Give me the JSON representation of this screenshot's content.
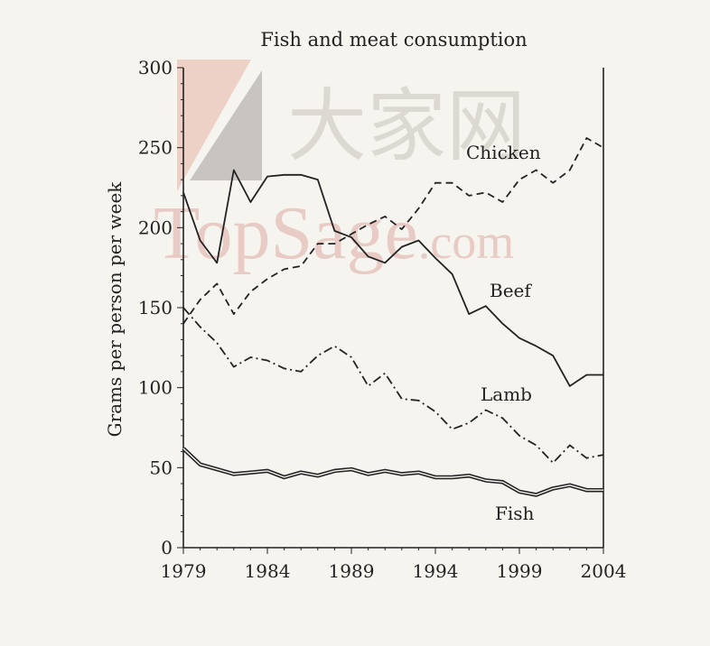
{
  "chart_data": {
    "type": "line",
    "title": "Fish and meat consumption",
    "xlabel": "",
    "ylabel": "Grams per person per week",
    "xlim": [
      1979,
      2004
    ],
    "ylim": [
      0,
      300
    ],
    "x_ticks": [
      "1979",
      "1984",
      "1989",
      "1994",
      "1999",
      "2004"
    ],
    "y_ticks": [
      "0",
      "50",
      "100",
      "150",
      "200",
      "250",
      "300"
    ],
    "grid": false,
    "legend": "inline labels",
    "series": [
      {
        "name": "Chicken",
        "style": "dashed",
        "x": [
          1979,
          1980,
          1981,
          1982,
          1983,
          1984,
          1985,
          1986,
          1987,
          1988,
          1989,
          1990,
          1991,
          1992,
          1993,
          1994,
          1995,
          1996,
          1997,
          1998,
          1999,
          2000,
          2001,
          2002,
          2003,
          2004
        ],
        "values": [
          140,
          155,
          165,
          146,
          160,
          168,
          174,
          176,
          190,
          190,
          196,
          202,
          207,
          199,
          212,
          228,
          228,
          220,
          222,
          216,
          230,
          236,
          228,
          236,
          256,
          250
        ]
      },
      {
        "name": "Beef",
        "style": "solid",
        "x": [
          1979,
          1980,
          1981,
          1982,
          1983,
          1984,
          1985,
          1986,
          1987,
          1988,
          1989,
          1990,
          1991,
          1992,
          1993,
          1994,
          1995,
          1996,
          1997,
          1998,
          1999,
          2000,
          2001,
          2002,
          2003,
          2004
        ],
        "values": [
          222,
          192,
          178,
          236,
          216,
          232,
          233,
          233,
          230,
          198,
          194,
          182,
          178,
          188,
          192,
          181,
          171,
          146,
          151,
          140,
          131,
          126,
          120,
          101,
          108,
          108
        ]
      },
      {
        "name": "Lamb",
        "style": "dash-dot",
        "x": [
          1979,
          1980,
          1981,
          1982,
          1983,
          1984,
          1985,
          1986,
          1987,
          1988,
          1989,
          1990,
          1991,
          1992,
          1993,
          1994,
          1995,
          1996,
          1997,
          1998,
          1999,
          2000,
          2001,
          2002,
          2003,
          2004
        ],
        "values": [
          150,
          138,
          128,
          113,
          119,
          117,
          112,
          110,
          120,
          126,
          119,
          101,
          109,
          93,
          92,
          85,
          74,
          78,
          86,
          81,
          70,
          64,
          53,
          64,
          56,
          58
        ]
      },
      {
        "name": "Fish",
        "style": "double",
        "x": [
          1979,
          1980,
          1981,
          1982,
          1983,
          1984,
          1985,
          1986,
          1987,
          1988,
          1989,
          1990,
          1991,
          1992,
          1993,
          1994,
          1995,
          1996,
          1997,
          1998,
          1999,
          2000,
          2001,
          2002,
          2003,
          2004
        ],
        "values": [
          62,
          52,
          49,
          46,
          47,
          48,
          44,
          47,
          45,
          48,
          49,
          46,
          48,
          46,
          47,
          44,
          44,
          45,
          42,
          41,
          35,
          33,
          37,
          39,
          36,
          36
        ]
      }
    ],
    "series_labels": [
      "Chicken",
      "Beef",
      "Lamb",
      "Fish"
    ]
  },
  "watermark": {
    "cjk_text": "大家网",
    "latin_text": "TopSage",
    "latin_suffix": ".com",
    "color": "#d9a9a1"
  }
}
